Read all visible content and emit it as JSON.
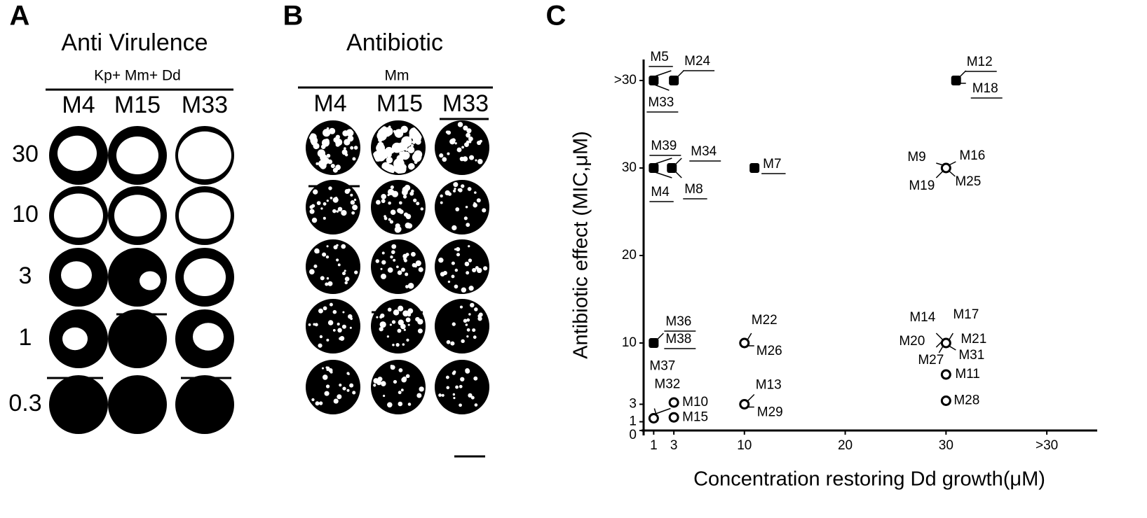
{
  "panel_a": {
    "letter": "A",
    "title": "Anti Virulence",
    "subtitle": "Kp+ Mm+ Dd",
    "columns": [
      "M4",
      "M15",
      "M33"
    ],
    "rows": [
      "30",
      "10",
      "3",
      "1",
      "0.3"
    ]
  },
  "panel_b": {
    "letter": "B",
    "title": "Antibiotic",
    "subtitle": "Mm",
    "columns": [
      "M4",
      "M15",
      "M33"
    ]
  },
  "chart_data": {
    "type": "scatter",
    "panel_label": "C",
    "xlabel": "Concentration restoring Dd growth(μM)",
    "ylabel": "Antibiotic effect (MIC,μM)",
    "xlim": [
      0,
      45
    ],
    "ylim": [
      0,
      43
    ],
    "xticks": [
      1,
      3,
      10,
      20,
      30,
      {
        "value": 40,
        "label": ">30"
      }
    ],
    "yticks": [
      0,
      1,
      3,
      10,
      20,
      30,
      {
        "value": 40,
        "label": ">30"
      }
    ],
    "series": [
      {
        "color": "#000000",
        "marker": "filled",
        "x": [
          1,
          3,
          31,
          1,
          2.8,
          11,
          1
        ],
        "values": [
          40,
          40,
          40,
          30,
          30,
          30,
          10
        ],
        "labels": [
          [
            "M5",
            "M33"
          ],
          [
            "M24"
          ],
          [
            "M12",
            "M18"
          ],
          [
            "M39",
            "M4"
          ],
          [
            "M34",
            "M8"
          ],
          [
            "M7"
          ],
          [
            "M36",
            "M38"
          ]
        ]
      },
      {
        "color": "#000000",
        "marker": "open",
        "x": [
          30,
          10,
          30,
          30,
          30,
          10,
          3,
          3,
          1
        ],
        "values": [
          30,
          10,
          10,
          6.4,
          3.4,
          3,
          3.2,
          1.5,
          1.4
        ],
        "labels": [
          [
            "M9",
            "M16",
            "M19",
            "M25"
          ],
          [
            "M22",
            "M26"
          ],
          [
            "M14",
            "M17",
            "M21",
            "M20",
            "M27",
            "M31"
          ],
          [
            "M11"
          ],
          [
            "M28"
          ],
          [
            "M13",
            "M29"
          ],
          [
            "M10"
          ],
          [
            "M15"
          ],
          [
            "M37",
            "M32"
          ]
        ]
      }
    ]
  }
}
